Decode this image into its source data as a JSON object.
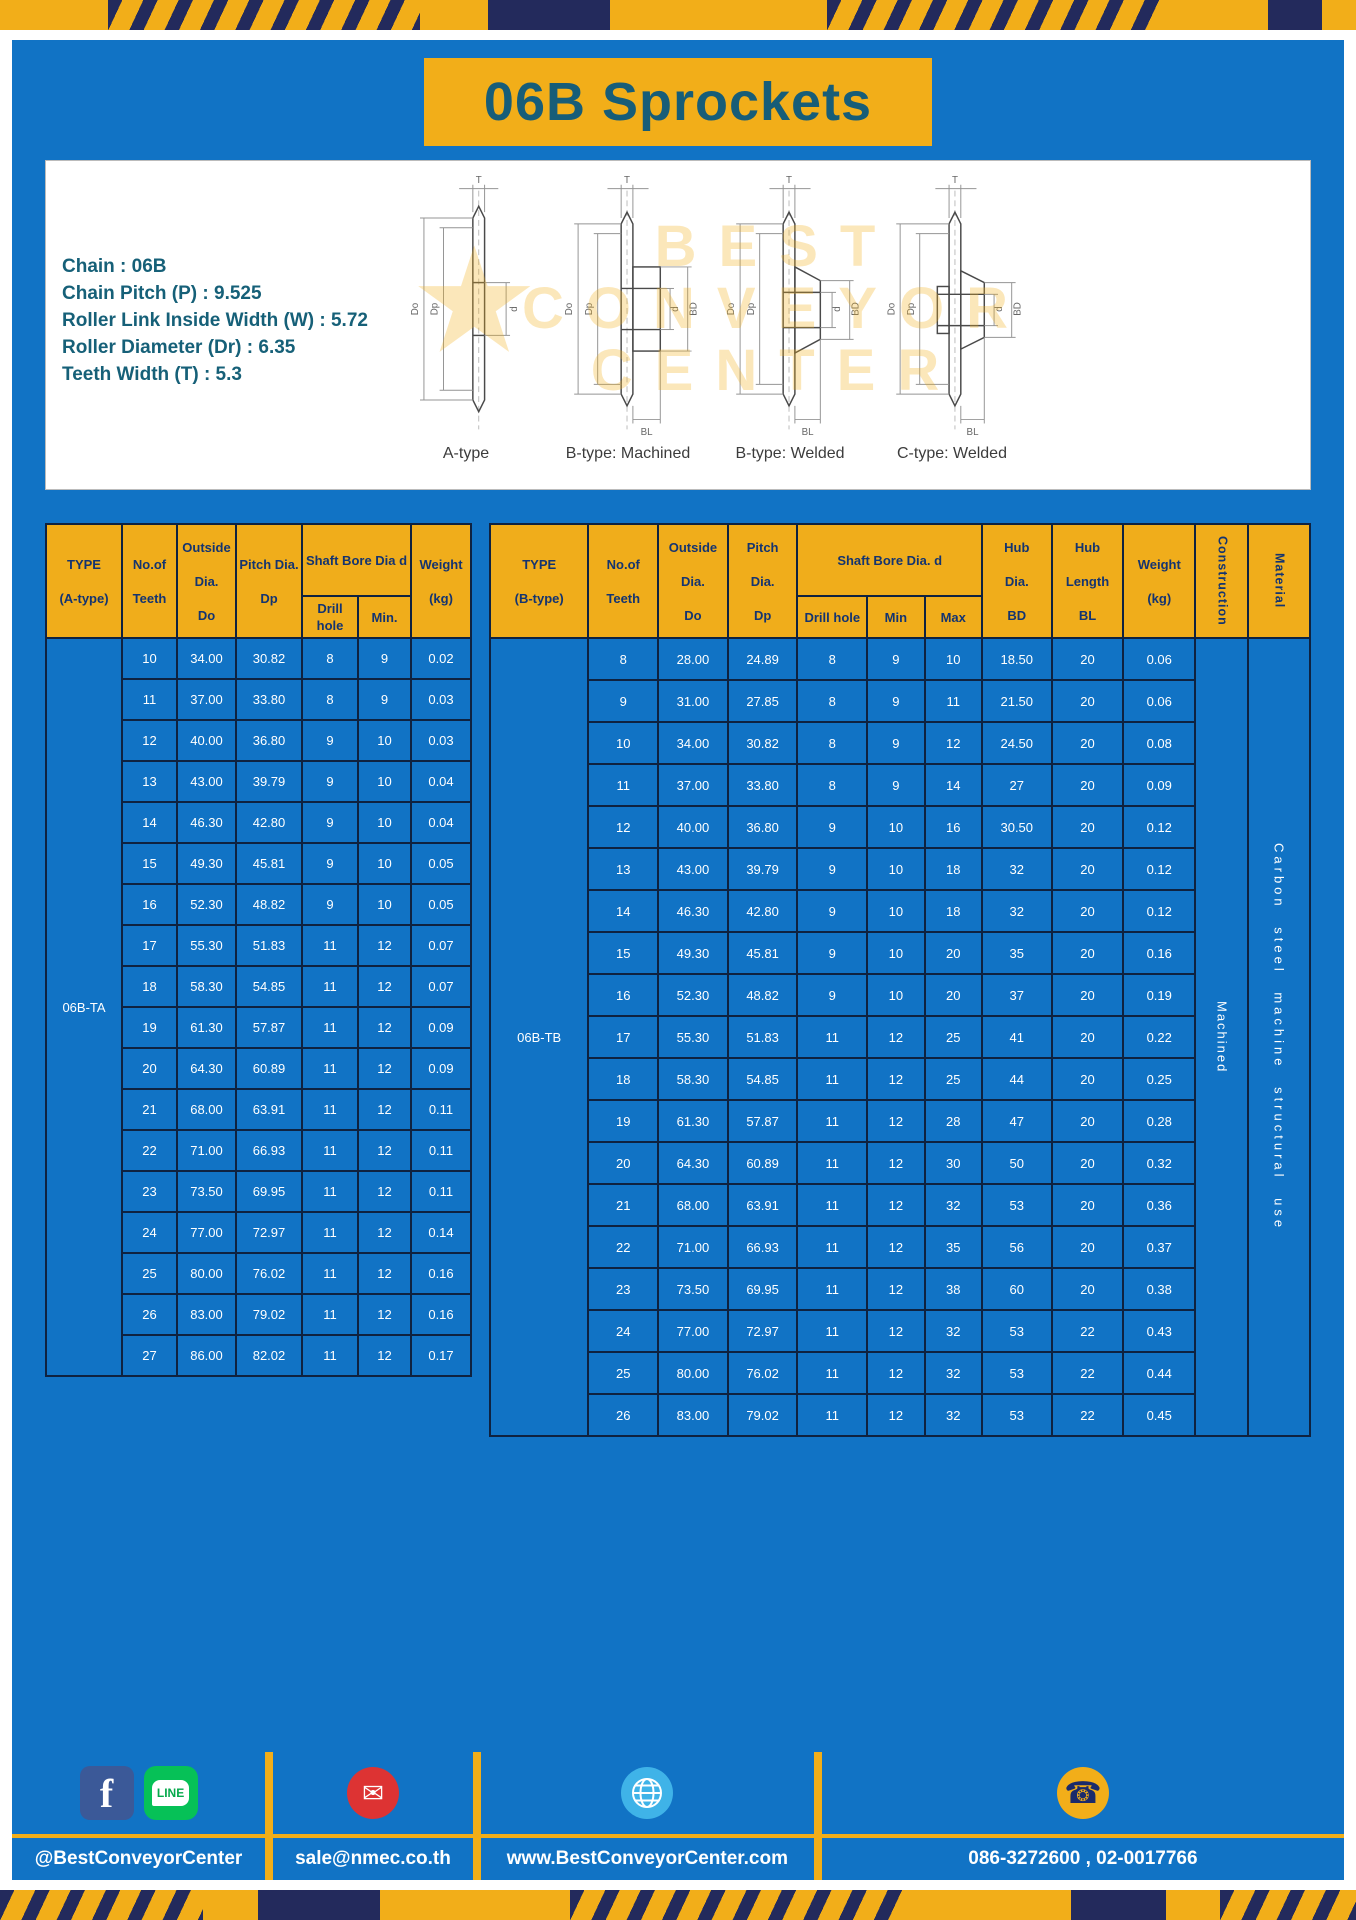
{
  "page": {
    "title": "06B Sprockets"
  },
  "specs": {
    "lines": [
      "Chain : 06B",
      "Chain Pitch (P) : 9.525",
      "Roller Link Inside Width (W) : 5.72",
      "Roller Diameter (Dr) : 6.35",
      "Teeth Width (T) : 5.3"
    ]
  },
  "watermark": {
    "logo_glyph": "★",
    "line1": "BEST",
    "line2": "CONVEYOR",
    "line3": "CENTER"
  },
  "diagram": {
    "views": [
      {
        "label": "A-type",
        "dims": [
          "T",
          "Do",
          "Dp",
          "d"
        ]
      },
      {
        "label": "B-type: Machined",
        "dims": [
          "T",
          "Do",
          "Dp",
          "d",
          "BD",
          "BL"
        ]
      },
      {
        "label": "B-type: Welded",
        "dims": [
          "T",
          "Do",
          "Dp",
          "d",
          "BD",
          "BL"
        ]
      },
      {
        "label": "C-type: Welded",
        "dims": [
          "T",
          "Do",
          "Dp",
          "d",
          "BD",
          "BL"
        ]
      }
    ]
  },
  "table_a": {
    "type_label": "06B-TA",
    "headers": {
      "type": "TYPE\n\n(A-type)",
      "teeth": "No.of\n\nTeeth",
      "outside": "Outside\n\nDia.\n\nDo",
      "pitch": "Pitch Dia.\n\nDp",
      "shaft_bore": "Shaft Bore Dia d",
      "drill": "Drill hole",
      "min": "Min.",
      "weight": "Weight\n\n(kg)"
    },
    "rows": [
      [
        "10",
        "34.00",
        "30.82",
        "8",
        "9",
        "0.02"
      ],
      [
        "11",
        "37.00",
        "33.80",
        "8",
        "9",
        "0.03"
      ],
      [
        "12",
        "40.00",
        "36.80",
        "9",
        "10",
        "0.03"
      ],
      [
        "13",
        "43.00",
        "39.79",
        "9",
        "10",
        "0.04"
      ],
      [
        "14",
        "46.30",
        "42.80",
        "9",
        "10",
        "0.04"
      ],
      [
        "15",
        "49.30",
        "45.81",
        "9",
        "10",
        "0.05"
      ],
      [
        "16",
        "52.30",
        "48.82",
        "9",
        "10",
        "0.05"
      ],
      [
        "17",
        "55.30",
        "51.83",
        "11",
        "12",
        "0.07"
      ],
      [
        "18",
        "58.30",
        "54.85",
        "11",
        "12",
        "0.07"
      ],
      [
        "19",
        "61.30",
        "57.87",
        "11",
        "12",
        "0.09"
      ],
      [
        "20",
        "64.30",
        "60.89",
        "11",
        "12",
        "0.09"
      ],
      [
        "21",
        "68.00",
        "63.91",
        "11",
        "12",
        "0.11"
      ],
      [
        "22",
        "71.00",
        "66.93",
        "11",
        "12",
        "0.11"
      ],
      [
        "23",
        "73.50",
        "69.95",
        "11",
        "12",
        "0.11"
      ],
      [
        "24",
        "77.00",
        "72.97",
        "11",
        "12",
        "0.14"
      ],
      [
        "25",
        "80.00",
        "76.02",
        "11",
        "12",
        "0.16"
      ],
      [
        "26",
        "83.00",
        "79.02",
        "11",
        "12",
        "0.16"
      ],
      [
        "27",
        "86.00",
        "82.02",
        "11",
        "12",
        "0.17"
      ]
    ]
  },
  "table_b": {
    "type_label": "06B-TB",
    "headers": {
      "type": "TYPE\n\n(B-type)",
      "teeth": "No.of\n\nTeeth",
      "outside": "Outside\n\nDia.\n\nDo",
      "pitch": "Pitch\n\nDia.\n\nDp",
      "shaft_bore": "Shaft Bore Dia. d",
      "drill": "Drill hole",
      "min": "Min",
      "max": "Max",
      "hub_dia": "Hub\n\nDia.\n\nBD",
      "hub_len": "Hub\n\nLength\n\nBL",
      "weight": "Weight\n\n(kg)",
      "construction": "Construction",
      "material": "Material"
    },
    "construction": "Machined",
    "material": "Carbon steel machine structural use",
    "rows": [
      [
        "8",
        "28.00",
        "24.89",
        "8",
        "9",
        "10",
        "18.50",
        "20",
        "0.06"
      ],
      [
        "9",
        "31.00",
        "27.85",
        "8",
        "9",
        "11",
        "21.50",
        "20",
        "0.06"
      ],
      [
        "10",
        "34.00",
        "30.82",
        "8",
        "9",
        "12",
        "24.50",
        "20",
        "0.08"
      ],
      [
        "11",
        "37.00",
        "33.80",
        "8",
        "9",
        "14",
        "27",
        "20",
        "0.09"
      ],
      [
        "12",
        "40.00",
        "36.80",
        "9",
        "10",
        "16",
        "30.50",
        "20",
        "0.12"
      ],
      [
        "13",
        "43.00",
        "39.79",
        "9",
        "10",
        "18",
        "32",
        "20",
        "0.12"
      ],
      [
        "14",
        "46.30",
        "42.80",
        "9",
        "10",
        "18",
        "32",
        "20",
        "0.12"
      ],
      [
        "15",
        "49.30",
        "45.81",
        "9",
        "10",
        "20",
        "35",
        "20",
        "0.16"
      ],
      [
        "16",
        "52.30",
        "48.82",
        "9",
        "10",
        "20",
        "37",
        "20",
        "0.19"
      ],
      [
        "17",
        "55.30",
        "51.83",
        "11",
        "12",
        "25",
        "41",
        "20",
        "0.22"
      ],
      [
        "18",
        "58.30",
        "54.85",
        "11",
        "12",
        "25",
        "44",
        "20",
        "0.25"
      ],
      [
        "19",
        "61.30",
        "57.87",
        "11",
        "12",
        "28",
        "47",
        "20",
        "0.28"
      ],
      [
        "20",
        "64.30",
        "60.89",
        "11",
        "12",
        "30",
        "50",
        "20",
        "0.32"
      ],
      [
        "21",
        "68.00",
        "63.91",
        "11",
        "12",
        "32",
        "53",
        "20",
        "0.36"
      ],
      [
        "22",
        "71.00",
        "66.93",
        "11",
        "12",
        "35",
        "56",
        "20",
        "0.37"
      ],
      [
        "23",
        "73.50",
        "69.95",
        "11",
        "12",
        "38",
        "60",
        "20",
        "0.38"
      ],
      [
        "24",
        "77.00",
        "72.97",
        "11",
        "12",
        "32",
        "53",
        "22",
        "0.43"
      ],
      [
        "25",
        "80.00",
        "76.02",
        "11",
        "12",
        "32",
        "53",
        "22",
        "0.44"
      ],
      [
        "26",
        "83.00",
        "79.02",
        "11",
        "12",
        "32",
        "53",
        "22",
        "0.45"
      ]
    ]
  },
  "footer": {
    "facebook_glyph": "f",
    "line_badge": "LINE",
    "mail_glyph": "✉",
    "phone_glyph": "☎",
    "sections": [
      {
        "label": "@BestConveyorCenter"
      },
      {
        "label": "sale@nmec.co.th"
      },
      {
        "label": "www.BestConveyorCenter.com"
      },
      {
        "label": "086-3272600 , 02-0017766"
      }
    ]
  }
}
